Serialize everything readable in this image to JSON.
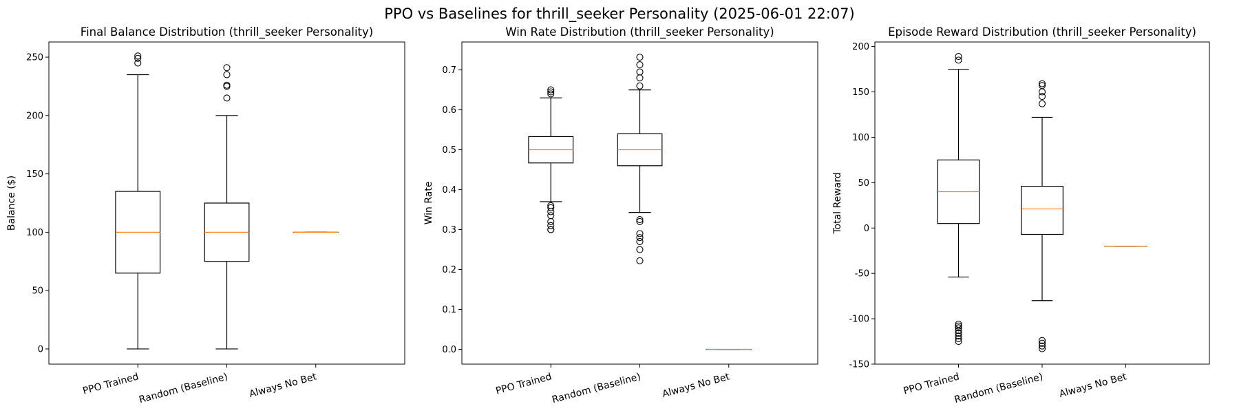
{
  "figure": {
    "title": "PPO vs Baselines for thrill_seeker Personality (2025-06-01 22:07)"
  },
  "colors": {
    "box": "#000000",
    "median": "#ff7f0e",
    "background": "#ffffff"
  },
  "chart_data": [
    {
      "type": "box",
      "title": "Final Balance Distribution (thrill_seeker Personality)",
      "xlabel": "",
      "ylabel": "Balance ($)",
      "ylim": [
        -13,
        263
      ],
      "yticks": [
        0,
        50,
        100,
        150,
        200,
        250
      ],
      "categories": [
        "PPO Trained",
        "Random (Baseline)",
        "Always No Bet"
      ],
      "boxes": [
        {
          "whisker_low": 0,
          "q1": 65,
          "median": 100,
          "q3": 135,
          "whisker_high": 235,
          "outliers": [
            245,
            249,
            251
          ]
        },
        {
          "whisker_low": 0,
          "q1": 75,
          "median": 100,
          "q3": 125,
          "whisker_high": 200,
          "outliers": [
            215,
            225,
            226,
            235,
            241
          ]
        },
        {
          "whisker_low": 100,
          "q1": 100,
          "median": 100,
          "q3": 100,
          "whisker_high": 100,
          "outliers": []
        }
      ]
    },
    {
      "type": "box",
      "title": "Win Rate Distribution (thrill_seeker Personality)",
      "xlabel": "",
      "ylabel": "Win Rate",
      "ylim": [
        -0.037,
        0.77
      ],
      "yticks": [
        0.0,
        0.1,
        0.2,
        0.3,
        0.4,
        0.5,
        0.6,
        0.7
      ],
      "categories": [
        "PPO Trained",
        "Random (Baseline)",
        "Always No Bet"
      ],
      "boxes": [
        {
          "whisker_low": 0.37,
          "q1": 0.467,
          "median": 0.5,
          "q3": 0.533,
          "whisker_high": 0.63,
          "outliers": [
            0.3,
            0.3,
            0.31,
            0.32,
            0.335,
            0.345,
            0.355,
            0.36,
            0.64,
            0.645,
            0.65
          ]
        },
        {
          "whisker_low": 0.343,
          "q1": 0.46,
          "median": 0.5,
          "q3": 0.54,
          "whisker_high": 0.65,
          "outliers": [
            0.222,
            0.25,
            0.27,
            0.28,
            0.29,
            0.32,
            0.325,
            0.66,
            0.68,
            0.695,
            0.713,
            0.732
          ]
        },
        {
          "whisker_low": 0.0,
          "q1": 0.0,
          "median": 0.0,
          "q3": 0.0,
          "whisker_high": 0.0,
          "outliers": []
        }
      ]
    },
    {
      "type": "box",
      "title": "Episode Reward Distribution (thrill_seeker Personality)",
      "xlabel": "",
      "ylabel": "Total Reward",
      "ylim": [
        -150,
        205
      ],
      "yticks": [
        -150,
        -100,
        -50,
        0,
        50,
        100,
        150,
        200
      ],
      "categories": [
        "PPO Trained",
        "Random (Baseline)",
        "Always No Bet"
      ],
      "boxes": [
        {
          "whisker_low": -54,
          "q1": 5,
          "median": 40,
          "q3": 75,
          "whisker_high": 175,
          "outliers": [
            -125,
            -122,
            -119,
            -116,
            -113,
            -110,
            -108,
            -106,
            185,
            189
          ]
        },
        {
          "whisker_low": -80,
          "q1": -7,
          "median": 21,
          "q3": 46,
          "whisker_high": 122,
          "outliers": [
            -133,
            -130,
            -127,
            -124,
            137,
            145,
            150,
            157,
            159
          ]
        },
        {
          "whisker_low": -20,
          "q1": -20,
          "median": -20,
          "q3": -20,
          "whisker_high": -20,
          "outliers": []
        }
      ]
    }
  ]
}
